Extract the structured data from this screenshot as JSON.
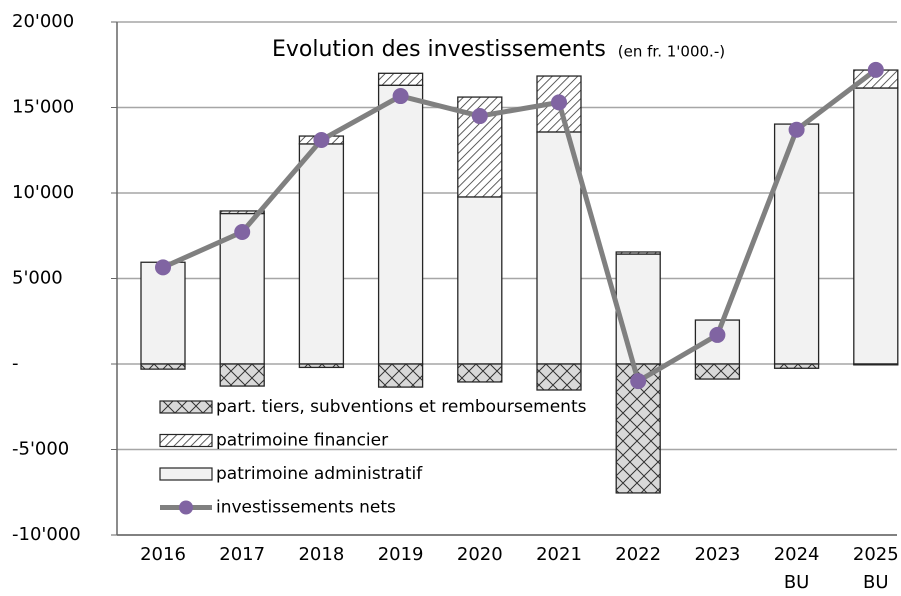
{
  "chart_data": {
    "type": "bar",
    "title": "Evolution des investissements",
    "subtitle": "(en fr. 1'000.-)",
    "categories": [
      "2016",
      "2017",
      "2018",
      "2019",
      "2020",
      "2021",
      "2022",
      "2023",
      "2024\nBU",
      "2025\nBU"
    ],
    "series": [
      {
        "name": "part. tiers, subventions et remboursements",
        "type": "bar",
        "color": "#d9d9d9",
        "pattern": "cross",
        "values": [
          -300,
          -1290,
          -200,
          -1350,
          -1050,
          -1520,
          -7540,
          -880,
          -250,
          -50
        ]
      },
      {
        "name": "patrimoine financier",
        "type": "bar",
        "color": "#ffffff",
        "pattern": "diagonal",
        "values": [
          0,
          150,
          460,
          700,
          5840,
          3270,
          120,
          0,
          0,
          1050
        ]
      },
      {
        "name": "patrimoine administratif",
        "type": "bar",
        "color": "#f2f2f2",
        "pattern": "none",
        "values": [
          5950,
          8800,
          12870,
          16300,
          9770,
          13570,
          6430,
          2570,
          14030,
          16140
        ]
      },
      {
        "name": "investissements nets",
        "type": "line",
        "color": "#808080",
        "marker_color": "#8064a2",
        "values": [
          5650,
          7720,
          13100,
          15670,
          14500,
          15300,
          -1000,
          1700,
          13700,
          17200
        ]
      }
    ],
    "ylim": [
      -10000,
      20000
    ],
    "yticks": [
      {
        "value": -10000,
        "label": "-10'000"
      },
      {
        "value": -5000,
        "label": "-5'000"
      },
      {
        "value": 0,
        "label": "-"
      },
      {
        "value": 5000,
        "label": "5'000"
      },
      {
        "value": 10000,
        "label": "10'000"
      },
      {
        "value": 15000,
        "label": "15'000"
      },
      {
        "value": 20000,
        "label": "20'000"
      }
    ],
    "grid": true,
    "legend": "lower left"
  }
}
